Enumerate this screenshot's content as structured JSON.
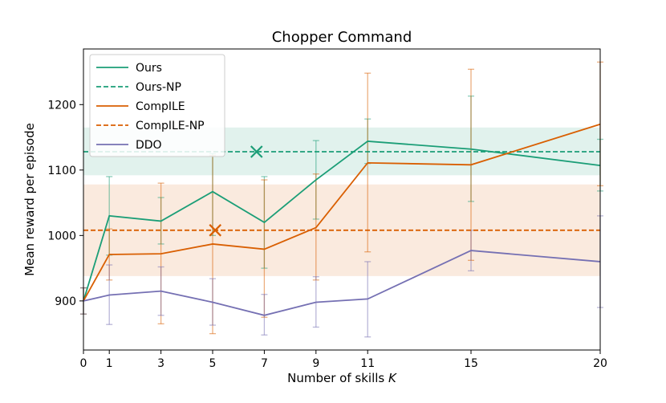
{
  "chart_data": {
    "type": "line",
    "title": "Chopper Command",
    "xlabel": "Number of skills ",
    "xlabel_var": "K",
    "ylabel": "Mean reward per episode",
    "xlim": [
      0,
      20
    ],
    "ylim": [
      825,
      1285
    ],
    "x_ticks": [
      0,
      1,
      3,
      5,
      7,
      9,
      11,
      15,
      20
    ],
    "y_ticks": [
      900,
      1000,
      1100,
      1200
    ],
    "grid": false,
    "legend_position": "top-left",
    "x": [
      0,
      1,
      3,
      5,
      7,
      9,
      11,
      15,
      20
    ],
    "series": [
      {
        "name": "Ours",
        "color": "#1b9e77",
        "style": "solid",
        "values": [
          900,
          1030,
          1022,
          1067,
          1020,
          1085,
          1144,
          1132,
          1107
        ],
        "err_low": [
          880,
          970,
          987,
          1000,
          950,
          1025,
          1110,
          1052,
          1068
        ],
        "err_high": [
          920,
          1090,
          1058,
          1125,
          1090,
          1145,
          1178,
          1213,
          1147
        ]
      },
      {
        "name": "CompILE",
        "color": "#d95f02",
        "style": "solid",
        "values": [
          900,
          971,
          972,
          987,
          979,
          1012,
          1111,
          1108,
          1170
        ],
        "err_low": [
          880,
          932,
          865,
          850,
          875,
          932,
          975,
          962,
          1076
        ],
        "err_high": [
          920,
          1010,
          1080,
          1122,
          1085,
          1094,
          1248,
          1254,
          1265
        ]
      },
      {
        "name": "DDO",
        "color": "#7570b3",
        "style": "solid",
        "values": [
          900,
          909,
          915,
          898,
          878,
          898,
          903,
          977,
          960
        ],
        "err_low": [
          880,
          864,
          878,
          863,
          848,
          860,
          845,
          946,
          890
        ],
        "err_high": [
          920,
          955,
          952,
          934,
          910,
          937,
          960,
          1008,
          1030
        ]
      }
    ],
    "reference_lines": [
      {
        "name": "Ours-NP",
        "color": "#1b9e77",
        "style": "dashed",
        "value": 1128,
        "band": [
          1092,
          1165
        ],
        "marker_x": 6.7
      },
      {
        "name": "CompILE-NP",
        "color": "#d95f02",
        "style": "dashed",
        "value": 1008,
        "band": [
          938,
          1078
        ],
        "marker_x": 5.1
      }
    ],
    "legend_order": [
      "Ours",
      "Ours-NP",
      "CompILE",
      "CompILE-NP",
      "DDO"
    ]
  }
}
